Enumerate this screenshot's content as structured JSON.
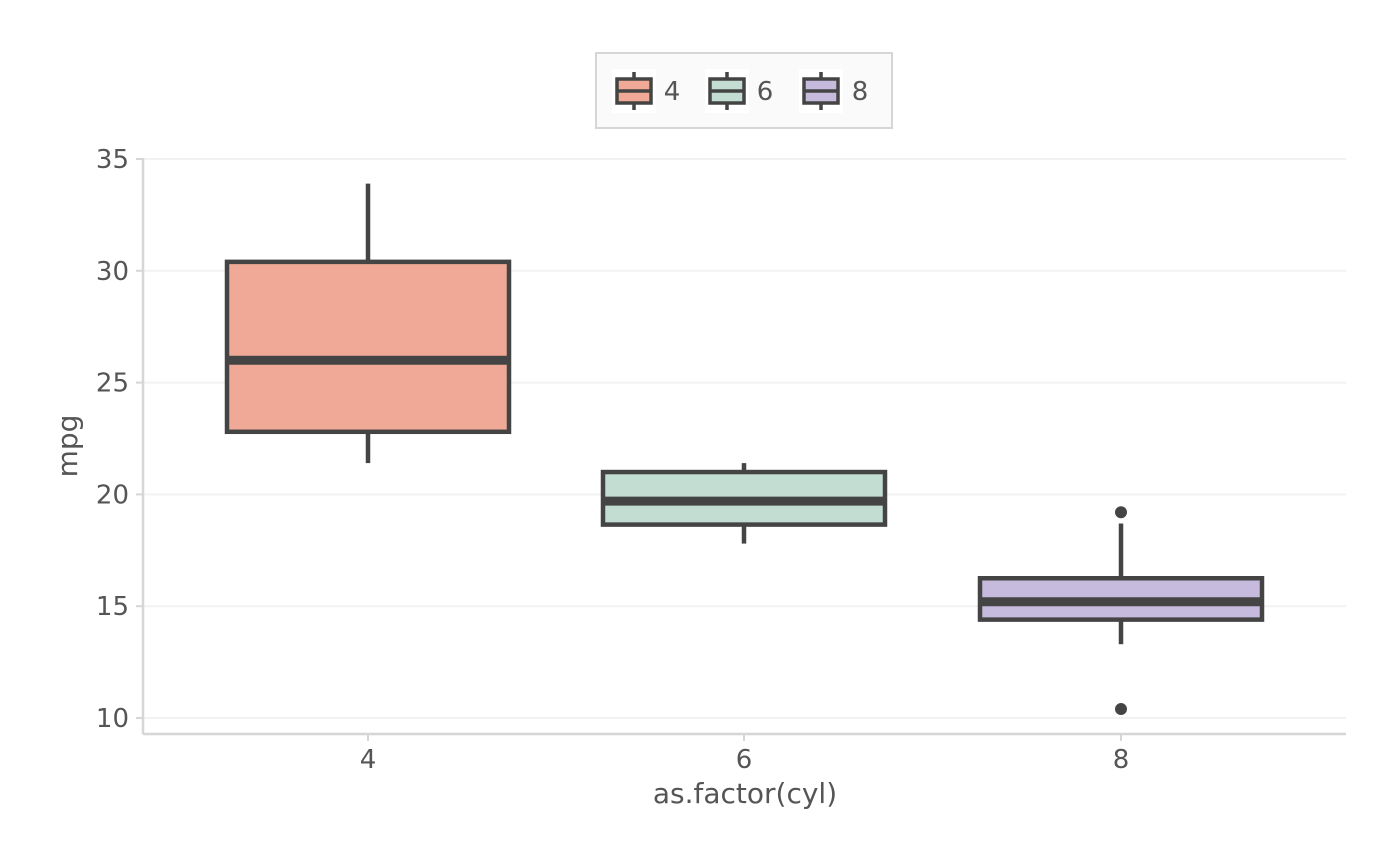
{
  "chart_data": {
    "type": "box",
    "xlabel": "as.factor(cyl)",
    "ylabel": "mpg",
    "categories": [
      "4",
      "6",
      "8"
    ],
    "ylim": [
      9.3,
      35.5
    ],
    "yticks": [
      10,
      15,
      20,
      25,
      30,
      35
    ],
    "grid": true,
    "legend": {
      "position": "top",
      "entries": [
        "4",
        "6",
        "8"
      ]
    },
    "boxes": [
      {
        "category": "4",
        "whisker_low": 21.4,
        "q1": 22.8,
        "median": 26.0,
        "q3": 30.4,
        "whisker_high": 33.9,
        "outliers": [],
        "fill": "#f1a997"
      },
      {
        "category": "6",
        "whisker_low": 17.8,
        "q1": 18.65,
        "median": 19.7,
        "q3": 21.0,
        "whisker_high": 21.4,
        "outliers": [],
        "fill": "#c3ddd3"
      },
      {
        "category": "8",
        "whisker_low": 13.3,
        "q1": 14.4,
        "median": 15.2,
        "q3": 16.25,
        "whisker_high": 18.7,
        "outliers": [
          19.2,
          10.4
        ],
        "fill": "#c6bbdd"
      }
    ],
    "colors": {
      "outline": "#444444",
      "grid": "#f2f2f2",
      "axis": "#d6d6d6",
      "text": "#555555",
      "legend_bg": "#fafafa",
      "legend_border": "#d6d6d6"
    }
  }
}
